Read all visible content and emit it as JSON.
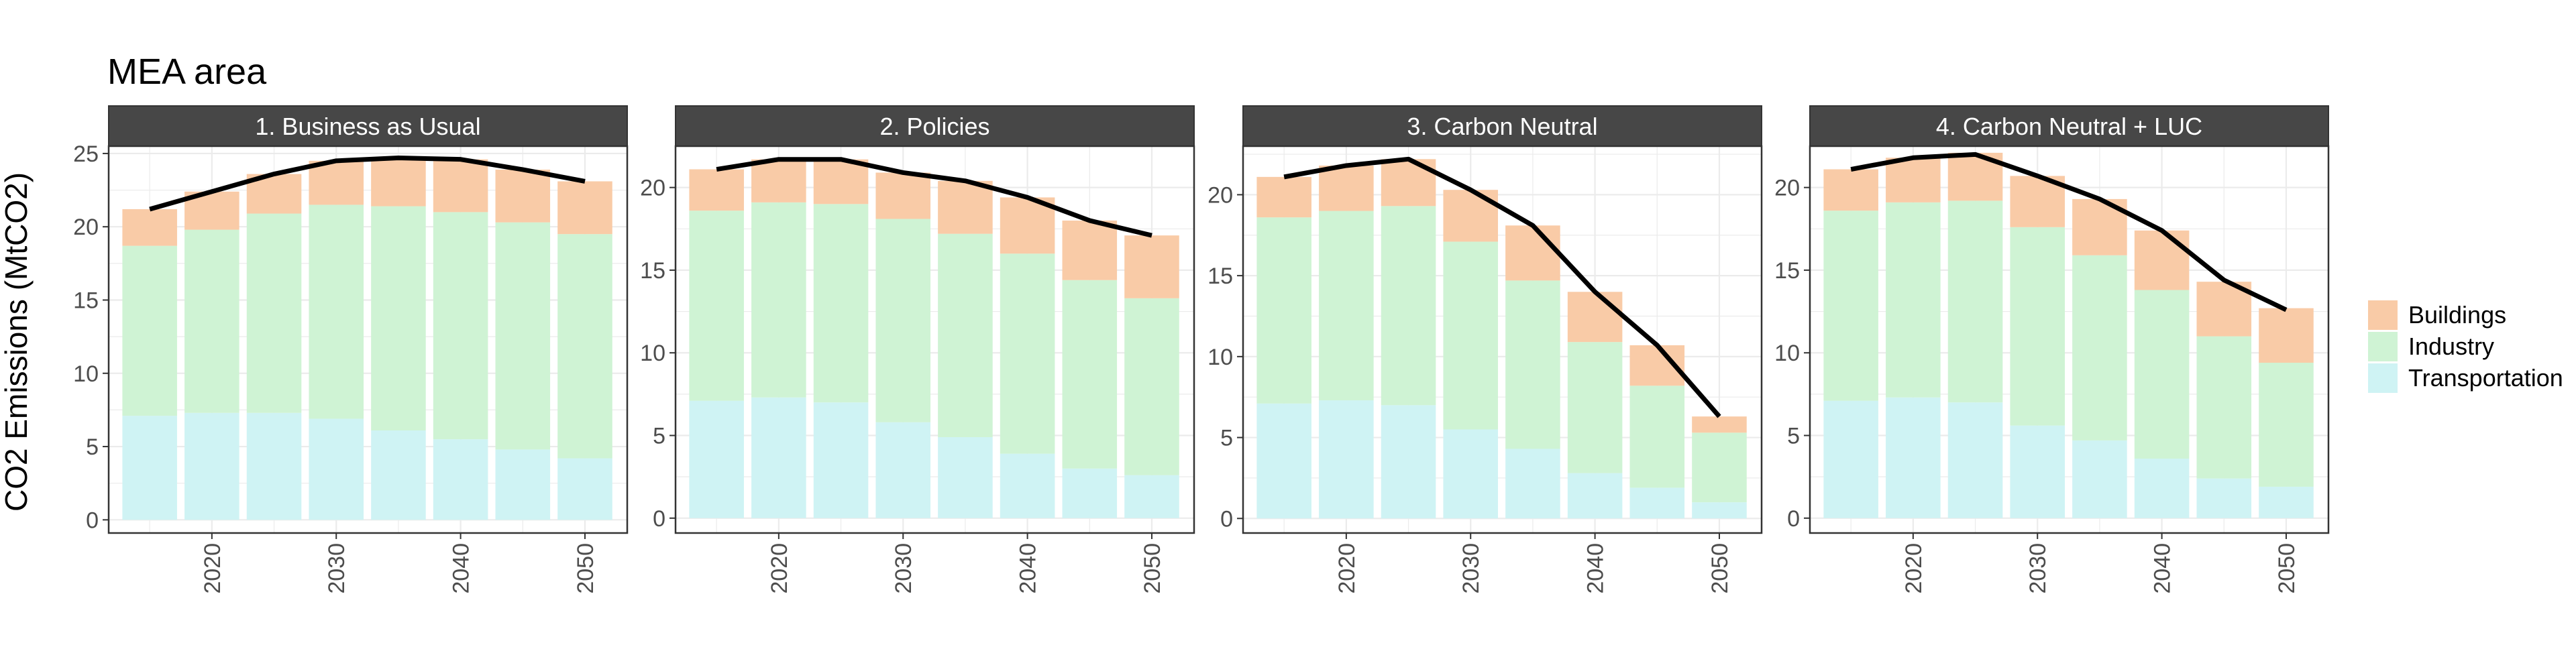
{
  "chart_data": {
    "type": "bar",
    "title": "MEA area",
    "ylabel": "CO2 Emissions (MtCO2)",
    "xlabel": "",
    "x": [
      2015,
      2020,
      2025,
      2030,
      2035,
      2040,
      2045,
      2050
    ],
    "x_ticks": [
      "2020",
      "2030",
      "2040",
      "2050"
    ],
    "legend": {
      "placement": "right",
      "entries": [
        "Buildings",
        "Industry",
        "Transportation"
      ]
    },
    "colors": {
      "Buildings": "#f9cba7",
      "Industry": "#cff3d4",
      "Transportation": "#cff3f4",
      "line": "#000000",
      "strip": "#474747",
      "grid": "#ebebeb",
      "panel_border": "#333333"
    },
    "grid": true,
    "stacked": true,
    "line_series": "total emissions",
    "panels": [
      {
        "title": "1. Business as Usual",
        "ylim": [
          -0.9,
          25.5
        ],
        "yticks": [
          0,
          5,
          10,
          15,
          20,
          25
        ],
        "series": [
          {
            "name": "Transportation",
            "values": [
              7.1,
              7.3,
              7.3,
              6.9,
              6.1,
              5.5,
              4.8,
              4.2
            ]
          },
          {
            "name": "Industry",
            "values": [
              11.6,
              12.5,
              13.6,
              14.6,
              15.3,
              15.5,
              15.5,
              15.3
            ]
          },
          {
            "name": "Buildings",
            "values": [
              2.5,
              2.6,
              2.7,
              3.0,
              3.3,
              3.6,
              3.6,
              3.6
            ]
          }
        ],
        "line": [
          21.2,
          22.4,
          23.6,
          24.5,
          24.7,
          24.6,
          23.9,
          23.1
        ]
      },
      {
        "title": "2. Policies",
        "ylim": [
          -0.9,
          22.5
        ],
        "yticks": [
          0,
          5,
          10,
          15,
          20
        ],
        "series": [
          {
            "name": "Transportation",
            "values": [
              7.1,
              7.3,
              7.0,
              5.8,
              4.9,
              3.9,
              3.0,
              2.6
            ]
          },
          {
            "name": "Industry",
            "values": [
              11.5,
              11.8,
              12.0,
              12.3,
              12.3,
              12.1,
              11.4,
              10.7
            ]
          },
          {
            "name": "Buildings",
            "values": [
              2.5,
              2.6,
              2.7,
              2.8,
              3.2,
              3.4,
              3.6,
              3.8
            ]
          }
        ],
        "line": [
          21.1,
          21.7,
          21.7,
          20.9,
          20.4,
          19.4,
          18.0,
          17.1
        ]
      },
      {
        "title": "3. Carbon Neutral",
        "ylim": [
          -0.9,
          23.0
        ],
        "yticks": [
          0,
          5,
          10,
          15,
          20
        ],
        "series": [
          {
            "name": "Transportation",
            "values": [
              7.1,
              7.3,
              7.0,
              5.5,
              4.3,
              2.8,
              1.9,
              1.0
            ]
          },
          {
            "name": "Industry",
            "values": [
              11.5,
              11.7,
              12.3,
              11.6,
              10.4,
              8.1,
              6.3,
              4.3
            ]
          },
          {
            "name": "Buildings",
            "values": [
              2.5,
              2.8,
              2.9,
              3.2,
              3.4,
              3.1,
              2.5,
              1.0
            ]
          }
        ],
        "line": [
          21.1,
          21.8,
          22.2,
          20.3,
          18.1,
          14.0,
          10.7,
          6.3
        ]
      },
      {
        "title": "4. Carbon Neutral + LUC",
        "ylim": [
          -0.9,
          22.5
        ],
        "yticks": [
          0,
          5,
          10,
          15,
          20
        ],
        "series": [
          {
            "name": "Transportation",
            "values": [
              7.1,
              7.3,
              7.0,
              5.6,
              4.7,
              3.6,
              2.4,
              1.9
            ]
          },
          {
            "name": "Industry",
            "values": [
              11.5,
              11.8,
              12.2,
              12.0,
              11.2,
              10.2,
              8.6,
              7.5
            ]
          },
          {
            "name": "Buildings",
            "values": [
              2.5,
              2.7,
              2.9,
              3.1,
              3.4,
              3.6,
              3.3,
              3.3
            ]
          }
        ],
        "line": [
          21.1,
          21.8,
          22.0,
          20.7,
          19.3,
          17.4,
          14.4,
          12.6
        ]
      }
    ]
  }
}
